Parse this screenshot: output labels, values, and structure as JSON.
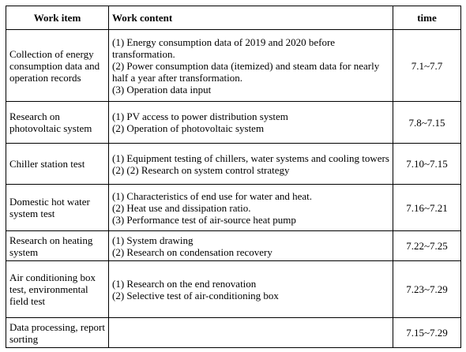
{
  "table": {
    "header": [
      "Work item",
      "Work content",
      "time"
    ],
    "rows": [
      {
        "item": "Collection of energy consumption data and operation records",
        "content": [
          "(1) Energy consumption data of 2019 and 2020 before transformation.",
          "(2) Power consumption data (itemized) and steam data for nearly half a year after transformation.",
          "(3) Operation data input"
        ],
        "time": "7.1~7.7"
      },
      {
        "item": "Research on photovoltaic system",
        "content": [
          "(1) PV access to power distribution system",
          "(2) Operation of photovoltaic system"
        ],
        "time": "7.8~7.15"
      },
      {
        "item": "Chiller station test",
        "content": [
          "(1) Equipment testing of chillers, water systems and cooling towers",
          "(2) (2) Research on system control strategy"
        ],
        "time": "7.10~7.15"
      },
      {
        "item": "Domestic hot water system test",
        "content": [
          "(1) Characteristics of end use for water and heat.",
          "(2) Heat use and dissipation ratio.",
          "(3) Performance test of air-source heat pump"
        ],
        "time": "7.16~7.21"
      },
      {
        "item": "Research on heating system",
        "content": [
          "(1) System drawing",
          "(2) Research on condensation recovery"
        ],
        "time": "7.22~7.25"
      },
      {
        "item": "Air conditioning box test, environmental field test",
        "content": [
          "(1) Research on the end renovation",
          "(2) Selective test of air-conditioning box"
        ],
        "time": "7.23~7.29"
      },
      {
        "item": "Data processing, report sorting",
        "content": [],
        "time": "7.15~7.29"
      }
    ]
  }
}
